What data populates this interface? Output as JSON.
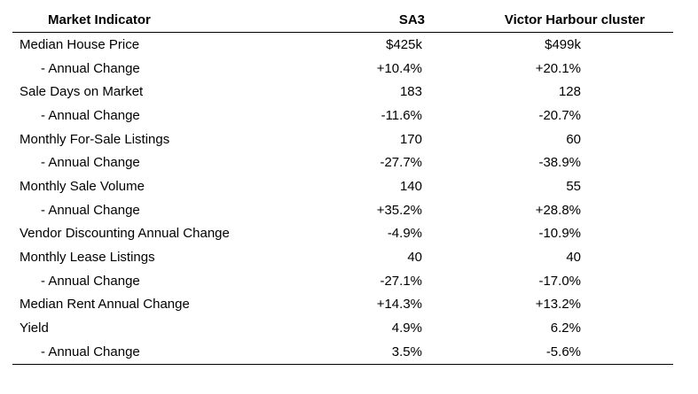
{
  "table": {
    "headers": [
      "Market Indicator",
      "SA3",
      "Victor Harbour cluster"
    ],
    "rows": [
      {
        "label": "Median House Price",
        "sub": false,
        "sa3": "$425k",
        "victor": "$499k"
      },
      {
        "label": "- Annual Change",
        "sub": true,
        "sa3": "+10.4%",
        "victor": "+20.1%"
      },
      {
        "label": "Sale Days on Market",
        "sub": false,
        "sa3": "183",
        "victor": "128"
      },
      {
        "label": "- Annual Change",
        "sub": true,
        "sa3": "-11.6%",
        "victor": "-20.7%"
      },
      {
        "label": "Monthly For-Sale Listings",
        "sub": false,
        "sa3": "170",
        "victor": "60"
      },
      {
        "label": "- Annual Change",
        "sub": true,
        "sa3": "-27.7%",
        "victor": "-38.9%"
      },
      {
        "label": "Monthly Sale Volume",
        "sub": false,
        "sa3": "140",
        "victor": "55"
      },
      {
        "label": "- Annual Change",
        "sub": true,
        "sa3": "+35.2%",
        "victor": "+28.8%"
      },
      {
        "label": "Vendor Discounting Annual Change",
        "sub": false,
        "sa3": "-4.9%",
        "victor": "-10.9%"
      },
      {
        "label": "Monthly Lease Listings",
        "sub": false,
        "sa3": "40",
        "victor": "40"
      },
      {
        "label": "- Annual Change",
        "sub": true,
        "sa3": "-27.1%",
        "victor": "-17.0%"
      },
      {
        "label": "Median Rent Annual Change",
        "sub": false,
        "sa3": "+14.3%",
        "victor": "+13.2%"
      },
      {
        "label": "Yield",
        "sub": false,
        "sa3": "4.9%",
        "victor": "6.2%"
      },
      {
        "label": "- Annual Change",
        "sub": true,
        "sa3": "3.5%",
        "victor": "-5.6%"
      }
    ]
  }
}
